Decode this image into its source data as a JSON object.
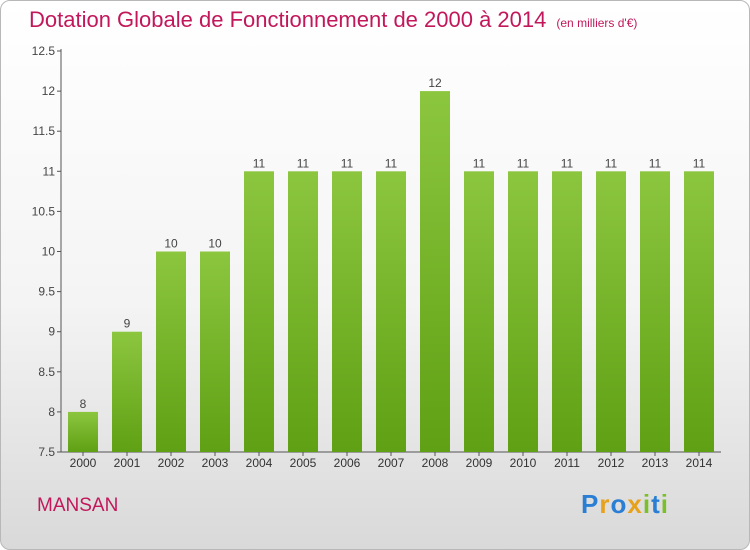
{
  "header": {
    "title": "Dotation Globale de Fonctionnement de 2000 à 2014",
    "unit": "(en milliers d'€)"
  },
  "footer": {
    "commune": "MANSAN",
    "brand": "Proxiti",
    "brand_letters": [
      {
        "ch": "P",
        "color": "#2a7fd4"
      },
      {
        "ch": "r",
        "color": "#e7a11a"
      },
      {
        "ch": "o",
        "color": "#2a7fd4"
      },
      {
        "ch": "x",
        "color": "#e7a11a"
      },
      {
        "ch": "i",
        "color": "#7bbf2a"
      },
      {
        "ch": "t",
        "color": "#2a7fd4"
      },
      {
        "ch": "i",
        "color": "#7bbf2a"
      }
    ]
  },
  "chart_data": {
    "type": "bar",
    "categories": [
      "2000",
      "2001",
      "2002",
      "2003",
      "2004",
      "2005",
      "2006",
      "2007",
      "2008",
      "2009",
      "2010",
      "2011",
      "2012",
      "2013",
      "2014"
    ],
    "values": [
      8,
      9,
      10,
      10,
      11,
      11,
      11,
      11,
      12,
      11,
      11,
      11,
      11,
      11,
      11
    ],
    "data_labels": [
      "8",
      "9",
      "10",
      "10",
      "11",
      "11",
      "11",
      "11",
      "12",
      "11",
      "11",
      "11",
      "11",
      "11",
      "11"
    ],
    "yticks": [
      "7.5",
      "8",
      "8.5",
      "9",
      "9.5",
      "10",
      "10.5",
      "11",
      "11.5",
      "12",
      "12.5"
    ],
    "ylim": [
      7.5,
      12.5
    ],
    "grid": false,
    "bar_color": "#8cc63f",
    "bar_color_dark": "#5fa014",
    "legend": "none"
  }
}
